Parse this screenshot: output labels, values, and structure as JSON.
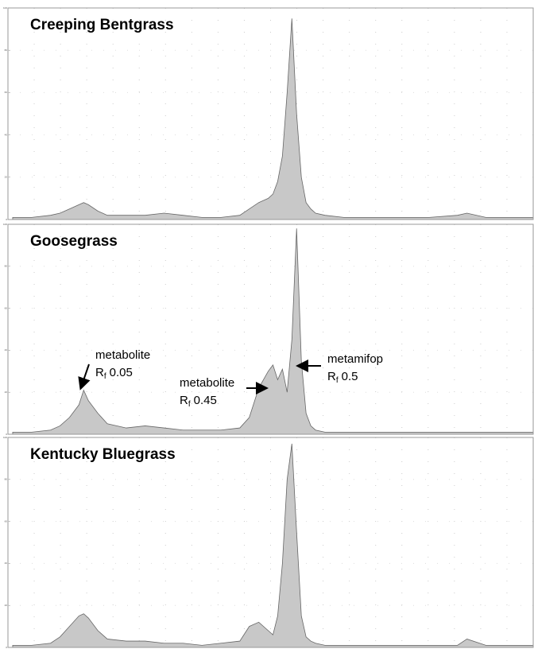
{
  "chart_data": [
    {
      "type": "area",
      "title": "Creeping Bentgrass",
      "color": "#c8c8c8",
      "xlim": [
        -0.11,
        1.0
      ],
      "ylim": [
        0,
        100
      ],
      "yticks": [
        0,
        20,
        40,
        60,
        80,
        100
      ],
      "x": [
        -0.1,
        -0.06,
        -0.02,
        0.0,
        0.02,
        0.04,
        0.05,
        0.06,
        0.08,
        0.1,
        0.14,
        0.18,
        0.22,
        0.26,
        0.3,
        0.34,
        0.38,
        0.4,
        0.42,
        0.44,
        0.45,
        0.46,
        0.47,
        0.48,
        0.49,
        0.5,
        0.51,
        0.52,
        0.53,
        0.54,
        0.56,
        0.6,
        0.66,
        0.72,
        0.78,
        0.84,
        0.86,
        0.9,
        0.96,
        1.0
      ],
      "values": [
        1,
        1,
        2,
        3,
        5,
        7,
        8,
        7,
        4,
        2,
        2,
        2,
        3,
        2,
        1,
        1,
        2,
        5,
        8,
        10,
        12,
        18,
        30,
        60,
        95,
        50,
        20,
        8,
        5,
        3,
        2,
        1,
        1,
        1,
        1,
        2,
        3,
        1,
        1,
        1
      ]
    },
    {
      "type": "area",
      "title": "Goosegrass",
      "color": "#c8c8c8",
      "xlim": [
        -0.11,
        1.0
      ],
      "ylim": [
        0,
        100
      ],
      "yticks": [
        0,
        20,
        40,
        60,
        80,
        100
      ],
      "x": [
        -0.1,
        -0.06,
        -0.02,
        0.0,
        0.02,
        0.04,
        0.05,
        0.06,
        0.08,
        0.1,
        0.14,
        0.18,
        0.22,
        0.26,
        0.3,
        0.34,
        0.38,
        0.4,
        0.42,
        0.44,
        0.45,
        0.46,
        0.47,
        0.48,
        0.49,
        0.5,
        0.51,
        0.52,
        0.53,
        0.54,
        0.56,
        0.6,
        0.66,
        0.72,
        0.78,
        0.84,
        0.86,
        0.9,
        0.96,
        1.0
      ],
      "values": [
        1,
        1,
        2,
        4,
        8,
        14,
        21,
        16,
        10,
        5,
        3,
        4,
        3,
        2,
        2,
        2,
        3,
        8,
        22,
        30,
        33,
        26,
        31,
        20,
        45,
        98,
        35,
        10,
        4,
        2,
        1,
        1,
        1,
        1,
        1,
        1,
        1,
        1,
        1,
        1
      ],
      "annotations": [
        {
          "label": "metabolite",
          "symbol": "R",
          "subscript": "f",
          "value": "0.05"
        },
        {
          "label": "metabolite",
          "symbol": "R",
          "subscript": "f",
          "value": "0.45"
        },
        {
          "label": "metamifop",
          "symbol": "R",
          "subscript": "f",
          "value": "0.5"
        }
      ]
    },
    {
      "type": "area",
      "title": "Kentucky Bluegrass",
      "color": "#c8c8c8",
      "xlim": [
        -0.11,
        1.0
      ],
      "ylim": [
        0,
        100
      ],
      "yticks": [
        0,
        20,
        40,
        60,
        80,
        100
      ],
      "x": [
        -0.1,
        -0.06,
        -0.02,
        0.0,
        0.02,
        0.04,
        0.05,
        0.06,
        0.08,
        0.1,
        0.14,
        0.18,
        0.22,
        0.26,
        0.3,
        0.34,
        0.38,
        0.4,
        0.42,
        0.44,
        0.45,
        0.46,
        0.47,
        0.48,
        0.49,
        0.5,
        0.51,
        0.52,
        0.53,
        0.54,
        0.56,
        0.6,
        0.66,
        0.72,
        0.78,
        0.84,
        0.86,
        0.9,
        0.96,
        1.0
      ],
      "values": [
        1,
        1,
        2,
        5,
        10,
        15,
        16,
        14,
        8,
        4,
        3,
        3,
        2,
        2,
        1,
        2,
        3,
        10,
        12,
        8,
        6,
        15,
        40,
        80,
        97,
        55,
        15,
        5,
        3,
        2,
        1,
        1,
        1,
        1,
        1,
        1,
        4,
        1,
        1,
        1
      ]
    }
  ]
}
